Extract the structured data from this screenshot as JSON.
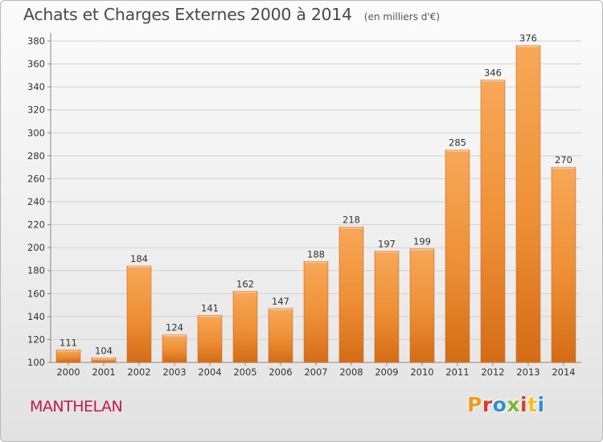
{
  "page": {
    "title": "Achats et Charges Externes 2000 à 2014",
    "unit": "(en milliers d'€)",
    "location": "MANTHELAN",
    "logo_text": "Proxiti",
    "logo_colors": [
      "#f39a1d",
      "#e03a2a",
      "#2e8fd8",
      "#7ab82c",
      "#e03a2a",
      "#f3c21d",
      "#2e8fd8"
    ],
    "bar_color": "#f39c4a",
    "bar_color_dark": "#d66e1a",
    "title_color": "#4a4a4a",
    "location_color": "#c8174e"
  },
  "chart_data": {
    "type": "bar",
    "title": "Achats et Charges Externes 2000 à 2014",
    "subtitle": "(en milliers d'€)",
    "categories": [
      "2000",
      "2001",
      "2002",
      "2003",
      "2004",
      "2005",
      "2006",
      "2007",
      "2008",
      "2009",
      "2010",
      "2011",
      "2012",
      "2013",
      "2014"
    ],
    "values": [
      111,
      104,
      184,
      124,
      141,
      162,
      147,
      188,
      218,
      197,
      199,
      285,
      346,
      376,
      270
    ],
    "ylim": [
      100,
      380
    ],
    "yticks": [
      100,
      120,
      140,
      160,
      180,
      200,
      220,
      240,
      260,
      280,
      300,
      320,
      340,
      360,
      380
    ],
    "grid": true,
    "legend": "none"
  }
}
